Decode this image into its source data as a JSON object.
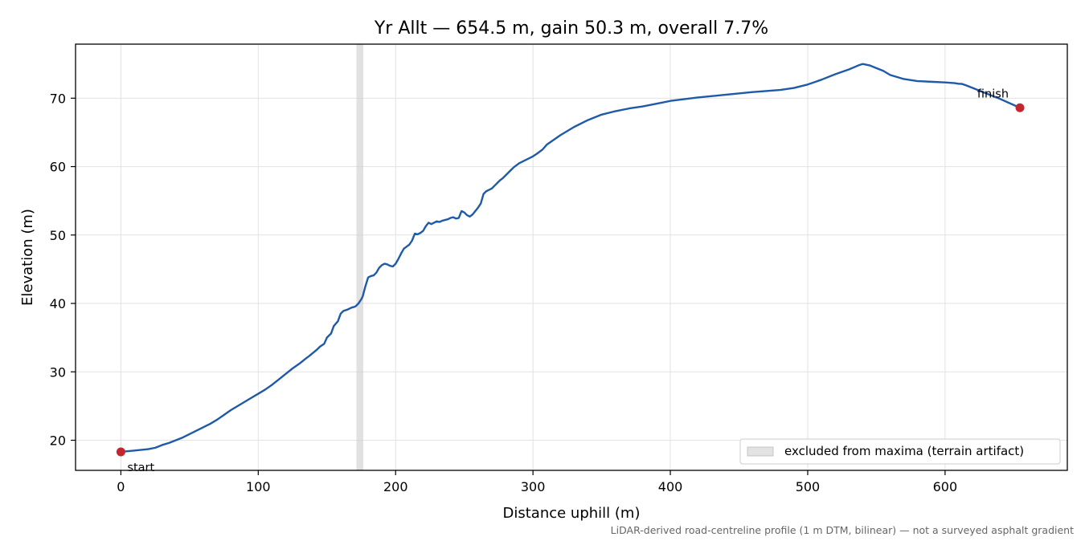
{
  "chart_data": {
    "type": "line",
    "title": "Yr Allt — 654.5 m, gain 50.3 m, overall 7.7%",
    "xlabel": "Distance uphill (m)",
    "ylabel": "Elevation (m)",
    "xlim": [
      -33,
      689
    ],
    "ylim": [
      15.6,
      77.9
    ],
    "xticks": [
      0,
      100,
      200,
      300,
      400,
      500,
      600
    ],
    "yticks": [
      20,
      30,
      40,
      50,
      60,
      70
    ],
    "grid": true,
    "legend_position": "lower-right",
    "footnote": "LiDAR-derived road-centreline profile (1 m DTM, bilinear) — not a surveyed asphalt gradient",
    "colors": {
      "line": "#1f5aa8",
      "markers": "#c1272d",
      "excluded_band": "#c8c8c8"
    },
    "excluded_band": {
      "x_range": [
        171.5,
        176.5
      ],
      "label": "excluded from maxima (terrain artifact)"
    },
    "markers": [
      {
        "label": "start",
        "x": 0,
        "y": 18.3
      },
      {
        "label": "finish",
        "x": 654.5,
        "y": 68.6
      }
    ],
    "series": [
      {
        "x": [
          0,
          10,
          20,
          25,
          30,
          35,
          40,
          45,
          50,
          55,
          60,
          65,
          70,
          75,
          80,
          85,
          90,
          95,
          100,
          105,
          110,
          115,
          120,
          125,
          130,
          135,
          137,
          140,
          143,
          145,
          148,
          150,
          153,
          155,
          158,
          160,
          162,
          165,
          168,
          170,
          171,
          172,
          173,
          174,
          175,
          176,
          178,
          180,
          182,
          184,
          186,
          188,
          190,
          192,
          194,
          196,
          198,
          200,
          202,
          204,
          206,
          208,
          210,
          212,
          214,
          216,
          218,
          220,
          222,
          224,
          226,
          228,
          230,
          232,
          234,
          236,
          238,
          240,
          242,
          244,
          246,
          248,
          250,
          252,
          254,
          256,
          258,
          260,
          262,
          264,
          266,
          268,
          270,
          272,
          274,
          276,
          278,
          280,
          283,
          286,
          290,
          295,
          300,
          303,
          307,
          310,
          320,
          330,
          340,
          350,
          360,
          370,
          380,
          390,
          400,
          420,
          440,
          460,
          480,
          490,
          500,
          510,
          520,
          530,
          537,
          540,
          545,
          550,
          555,
          560,
          570,
          580,
          590,
          600,
          607,
          610,
          612,
          615,
          620,
          630,
          640,
          654.5
        ],
        "y": [
          18.3,
          18.5,
          18.7,
          18.9,
          19.3,
          19.6,
          20.0,
          20.4,
          20.9,
          21.4,
          21.9,
          22.4,
          23.0,
          23.7,
          24.4,
          25.0,
          25.6,
          26.2,
          26.8,
          27.4,
          28.1,
          28.9,
          29.7,
          30.5,
          31.2,
          32.0,
          32.3,
          32.8,
          33.3,
          33.7,
          34.1,
          35.0,
          35.6,
          36.7,
          37.4,
          38.5,
          38.9,
          39.1,
          39.4,
          39.5,
          39.6,
          39.8,
          40.0,
          40.3,
          40.6,
          41.0,
          42.5,
          43.8,
          44.0,
          44.1,
          44.5,
          45.2,
          45.6,
          45.8,
          45.7,
          45.5,
          45.4,
          45.8,
          46.5,
          47.3,
          48.0,
          48.3,
          48.6,
          49.2,
          50.2,
          50.1,
          50.3,
          50.6,
          51.3,
          51.8,
          51.6,
          51.8,
          52.0,
          51.9,
          52.1,
          52.2,
          52.3,
          52.5,
          52.6,
          52.4,
          52.5,
          53.5,
          53.3,
          52.9,
          52.7,
          53.0,
          53.5,
          54.0,
          54.6,
          56.0,
          56.4,
          56.6,
          56.8,
          57.2,
          57.6,
          58.0,
          58.3,
          58.7,
          59.3,
          59.9,
          60.5,
          61.0,
          61.5,
          61.9,
          62.5,
          63.2,
          64.6,
          65.8,
          66.8,
          67.6,
          68.1,
          68.5,
          68.8,
          69.2,
          69.6,
          70.1,
          70.5,
          70.9,
          71.2,
          71.5,
          72.0,
          72.7,
          73.5,
          74.2,
          74.8,
          75.0,
          74.8,
          74.4,
          74.0,
          73.4,
          72.8,
          72.5,
          72.4,
          72.3,
          72.2,
          72.1,
          72.1,
          71.9,
          71.5,
          70.7,
          69.9,
          68.6
        ]
      }
    ]
  }
}
